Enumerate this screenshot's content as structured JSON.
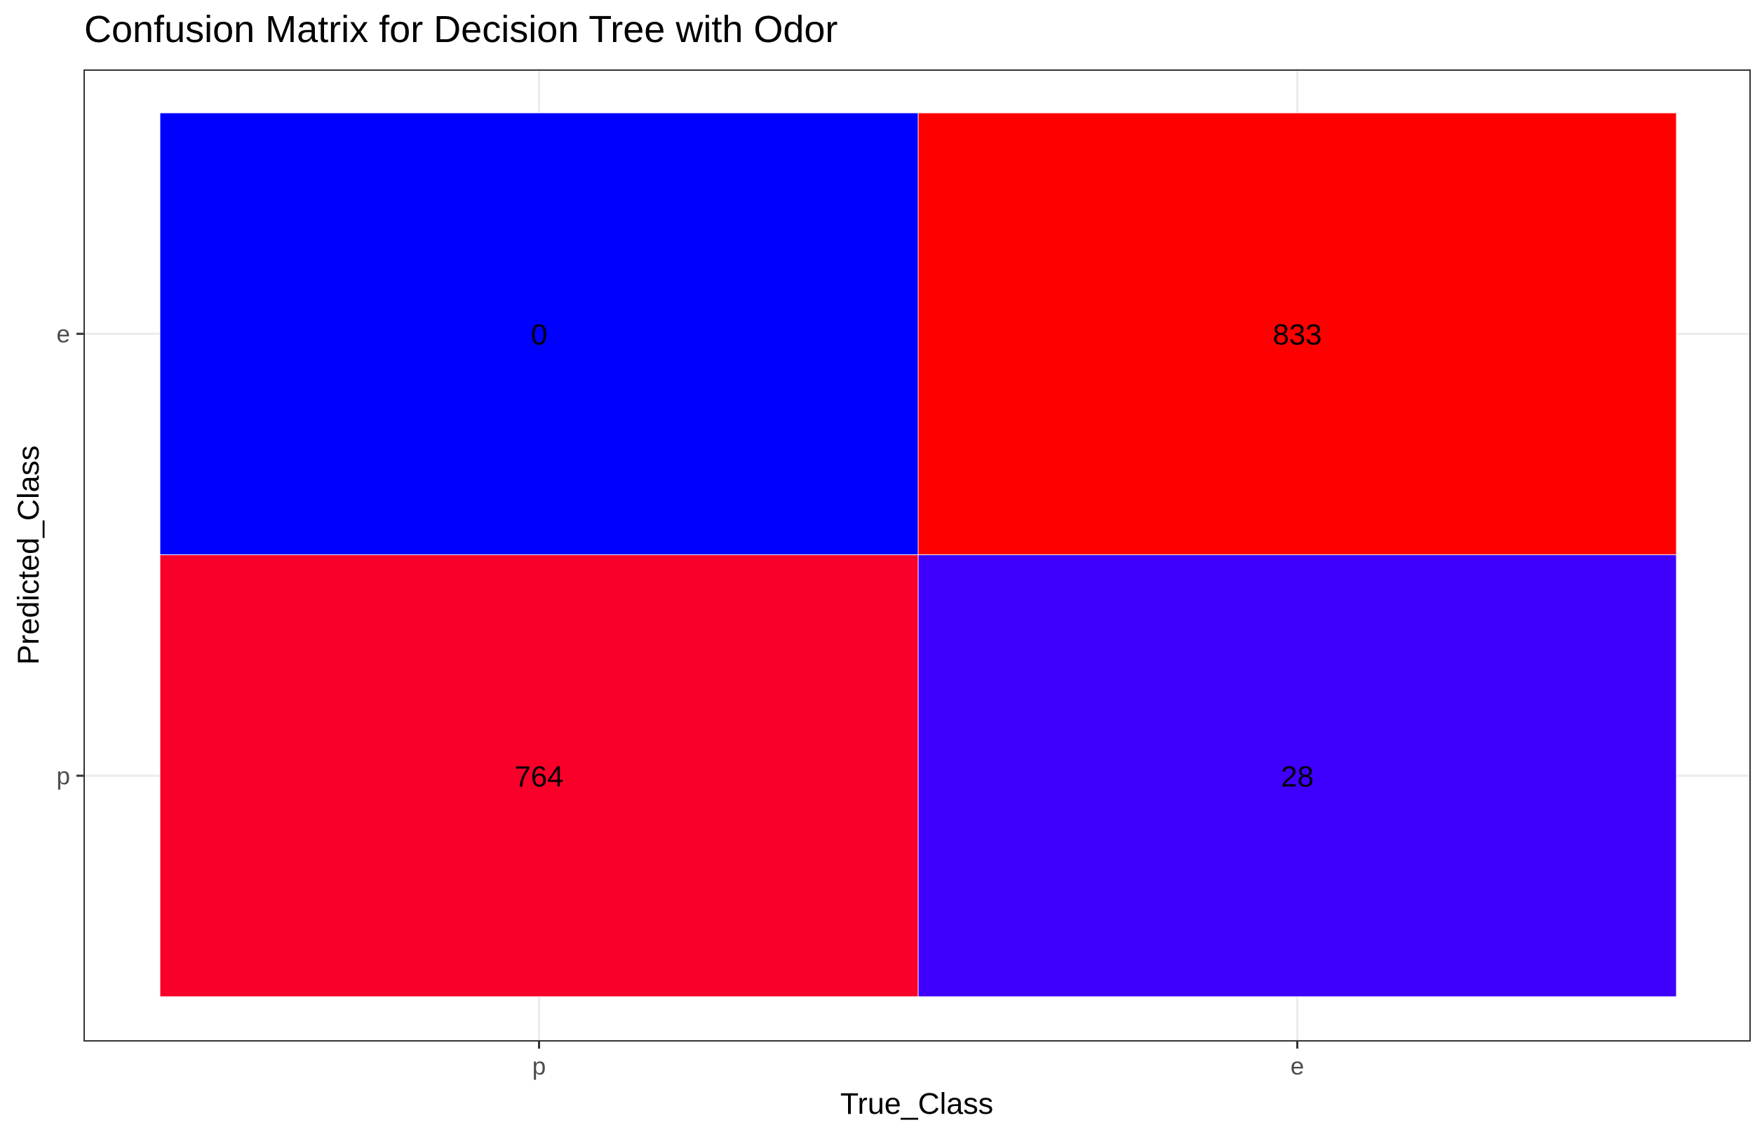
{
  "chart_data": {
    "type": "heatmap",
    "title": "Confusion Matrix for Decision Tree with Odor",
    "xlabel": "True_Class",
    "ylabel": "Predicted_Class",
    "x_categories": [
      "p",
      "e"
    ],
    "y_categories": [
      "e",
      "p"
    ],
    "cells": [
      {
        "true_class": "p",
        "predicted_class": "e",
        "value": 0,
        "color": "#0000ff"
      },
      {
        "true_class": "e",
        "predicted_class": "e",
        "value": 833,
        "color": "#ff0000"
      },
      {
        "true_class": "p",
        "predicted_class": "p",
        "value": 764,
        "color": "#f9002b"
      },
      {
        "true_class": "e",
        "predicted_class": "p",
        "value": 28,
        "color": "#3f00fb"
      }
    ],
    "grid": true,
    "legend": "none"
  }
}
